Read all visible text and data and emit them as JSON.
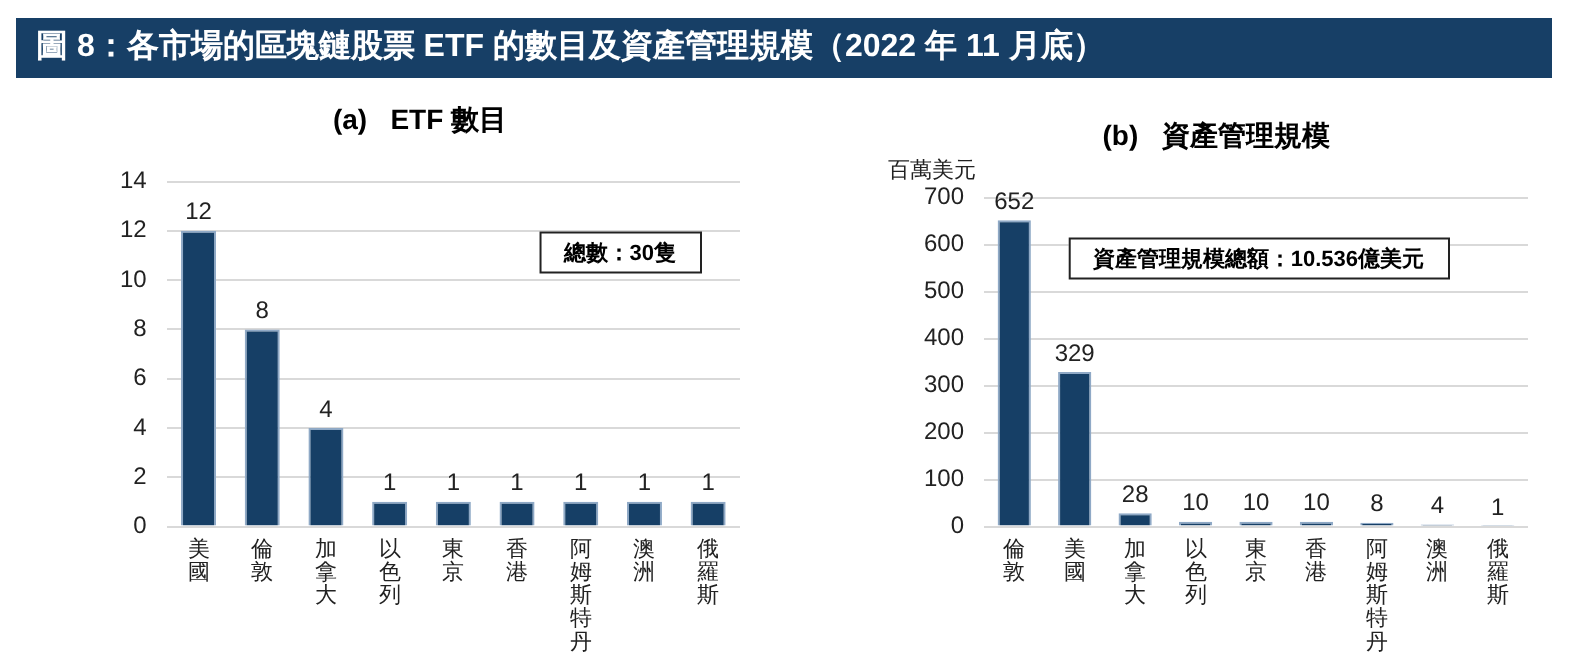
{
  "chart_data": [
    {
      "type": "bar",
      "title": "圖 8：各市場的區塊鏈股票 ETF 的數目及資產管理規模（2022 年 11 月底）",
      "subtitle": "(a)   ETF 數目",
      "categories": [
        "美國",
        "倫敦",
        "加拿大",
        "以色列",
        "東京",
        "香港",
        "阿姆斯特丹",
        "澳洲",
        "俄羅斯"
      ],
      "values": [
        12,
        8,
        4,
        1,
        1,
        1,
        1,
        1,
        1
      ],
      "color": "#163f66",
      "ylim": [
        0,
        14
      ],
      "yticks": [
        0,
        2,
        4,
        6,
        8,
        10,
        12,
        14
      ],
      "grid": "y",
      "legend": false,
      "data_labels": true,
      "annotations": [
        "總數：30隻"
      ]
    },
    {
      "type": "bar",
      "title": "(b)   資產管理規模",
      "ylabel": "百萬美元",
      "categories": [
        "倫敦",
        "美國",
        "加拿大",
        "以色列",
        "東京",
        "香港",
        "阿姆斯特丹",
        "澳洲",
        "俄羅斯"
      ],
      "values": [
        652,
        329,
        28,
        10,
        10,
        10,
        8,
        4,
        1
      ],
      "color": "#163f66",
      "ylim": [
        0,
        700
      ],
      "yticks": [
        0,
        100,
        200,
        300,
        400,
        500,
        600,
        700
      ],
      "grid": "y",
      "legend": false,
      "data_labels": true,
      "annotations": [
        "資產管理規模總額：10.536億美元"
      ]
    }
  ]
}
